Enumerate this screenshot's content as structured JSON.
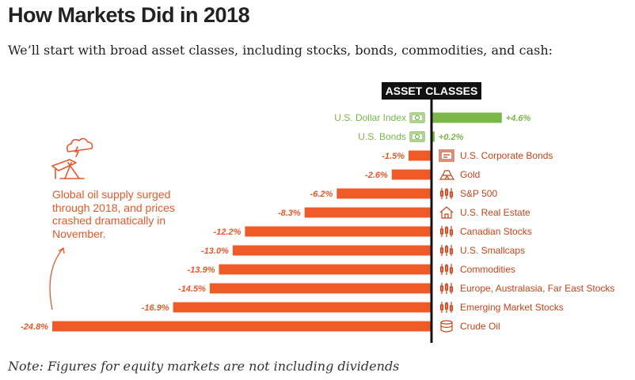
{
  "title": "How Markets Did in 2018",
  "subtitle": "We’ll start with broad asset classes, including stocks, bonds, commodities, and cash:",
  "note": "Note: Figures for equity markets are not including dividends",
  "annotation": "Global oil supply surged through 2018, and prices crashed dramatically in November.",
  "colors": {
    "positive": "#7ab648",
    "negative": "#f05a28",
    "axis": "#111111",
    "text_neg": "#e8572a"
  },
  "chart_data": {
    "type": "bar",
    "orientation": "horizontal",
    "header": "ASSET CLASSES",
    "categories": [
      "U.S. Dollar Index",
      "U.S. Bonds",
      "U.S. Corporate Bonds",
      "Gold",
      "S&P 500",
      "U.S. Real Estate",
      "Canadian Stocks",
      "U.S. Smallcaps",
      "Commodities",
      "Europe, Australasia, Far East Stocks",
      "Emerging Market Stocks",
      "Crude Oil"
    ],
    "values": [
      4.6,
      0.2,
      -1.5,
      -2.6,
      -6.2,
      -8.3,
      -12.2,
      -13.0,
      -13.9,
      -14.5,
      -16.9,
      -24.8
    ],
    "value_labels": [
      "+4.6%",
      "+0.2%",
      "-1.5%",
      "-2.6%",
      "-6.2%",
      "-8.3%",
      "-12.2%",
      "-13.0%",
      "-13.9%",
      "-14.5%",
      "-16.9%",
      "-24.8%"
    ],
    "icons": [
      "cash-icon",
      "cash-icon",
      "certificate-icon",
      "gold-bars-icon",
      "candlestick-icon",
      "house-icon",
      "candlestick-icon",
      "candlestick-icon",
      "candlestick-icon",
      "candlestick-icon",
      "candlestick-icon",
      "oil-barrel-icon"
    ],
    "xlim": [
      -24.8,
      4.6
    ]
  }
}
